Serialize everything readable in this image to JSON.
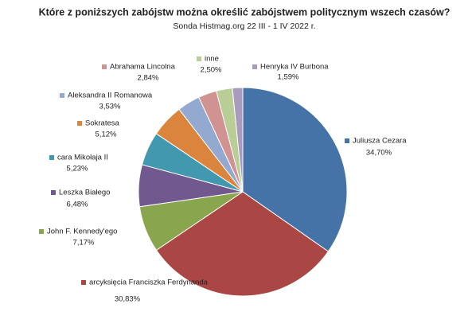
{
  "chart_data": {
    "type": "pie",
    "title": "Które z poniższych zabójstw można określić zabójstwem politycznym wszech czasów?",
    "subtitle": "Sonda Histmag.org  22 III - 1 IV 2022 r.",
    "categories": [
      "Juliusza Cezara",
      "arcyksięcia Franciszka Ferdynanda",
      "John F. Kennedy'ego",
      "Leszka Białego",
      "cara Mikołaja II",
      "Sokratesa",
      "Aleksandra II Romanowa",
      "Abrahama Lincolna",
      "inne",
      "Henryka IV Burbona"
    ],
    "values": [
      34.7,
      30.83,
      7.17,
      6.48,
      5.23,
      5.12,
      3.53,
      2.84,
      2.5,
      1.59
    ],
    "value_labels": [
      "34,70%",
      "30,83%",
      "7,17%",
      "6,48%",
      "5,23%",
      "5,12%",
      "3,53%",
      "2,84%",
      "2,50%",
      "1,59%"
    ],
    "colors": [
      "#4572a7",
      "#aa4643",
      "#89a54e",
      "#71588f",
      "#4198af",
      "#db843d",
      "#93a9cf",
      "#d19392",
      "#b9cd96",
      "#a99bbd"
    ]
  }
}
